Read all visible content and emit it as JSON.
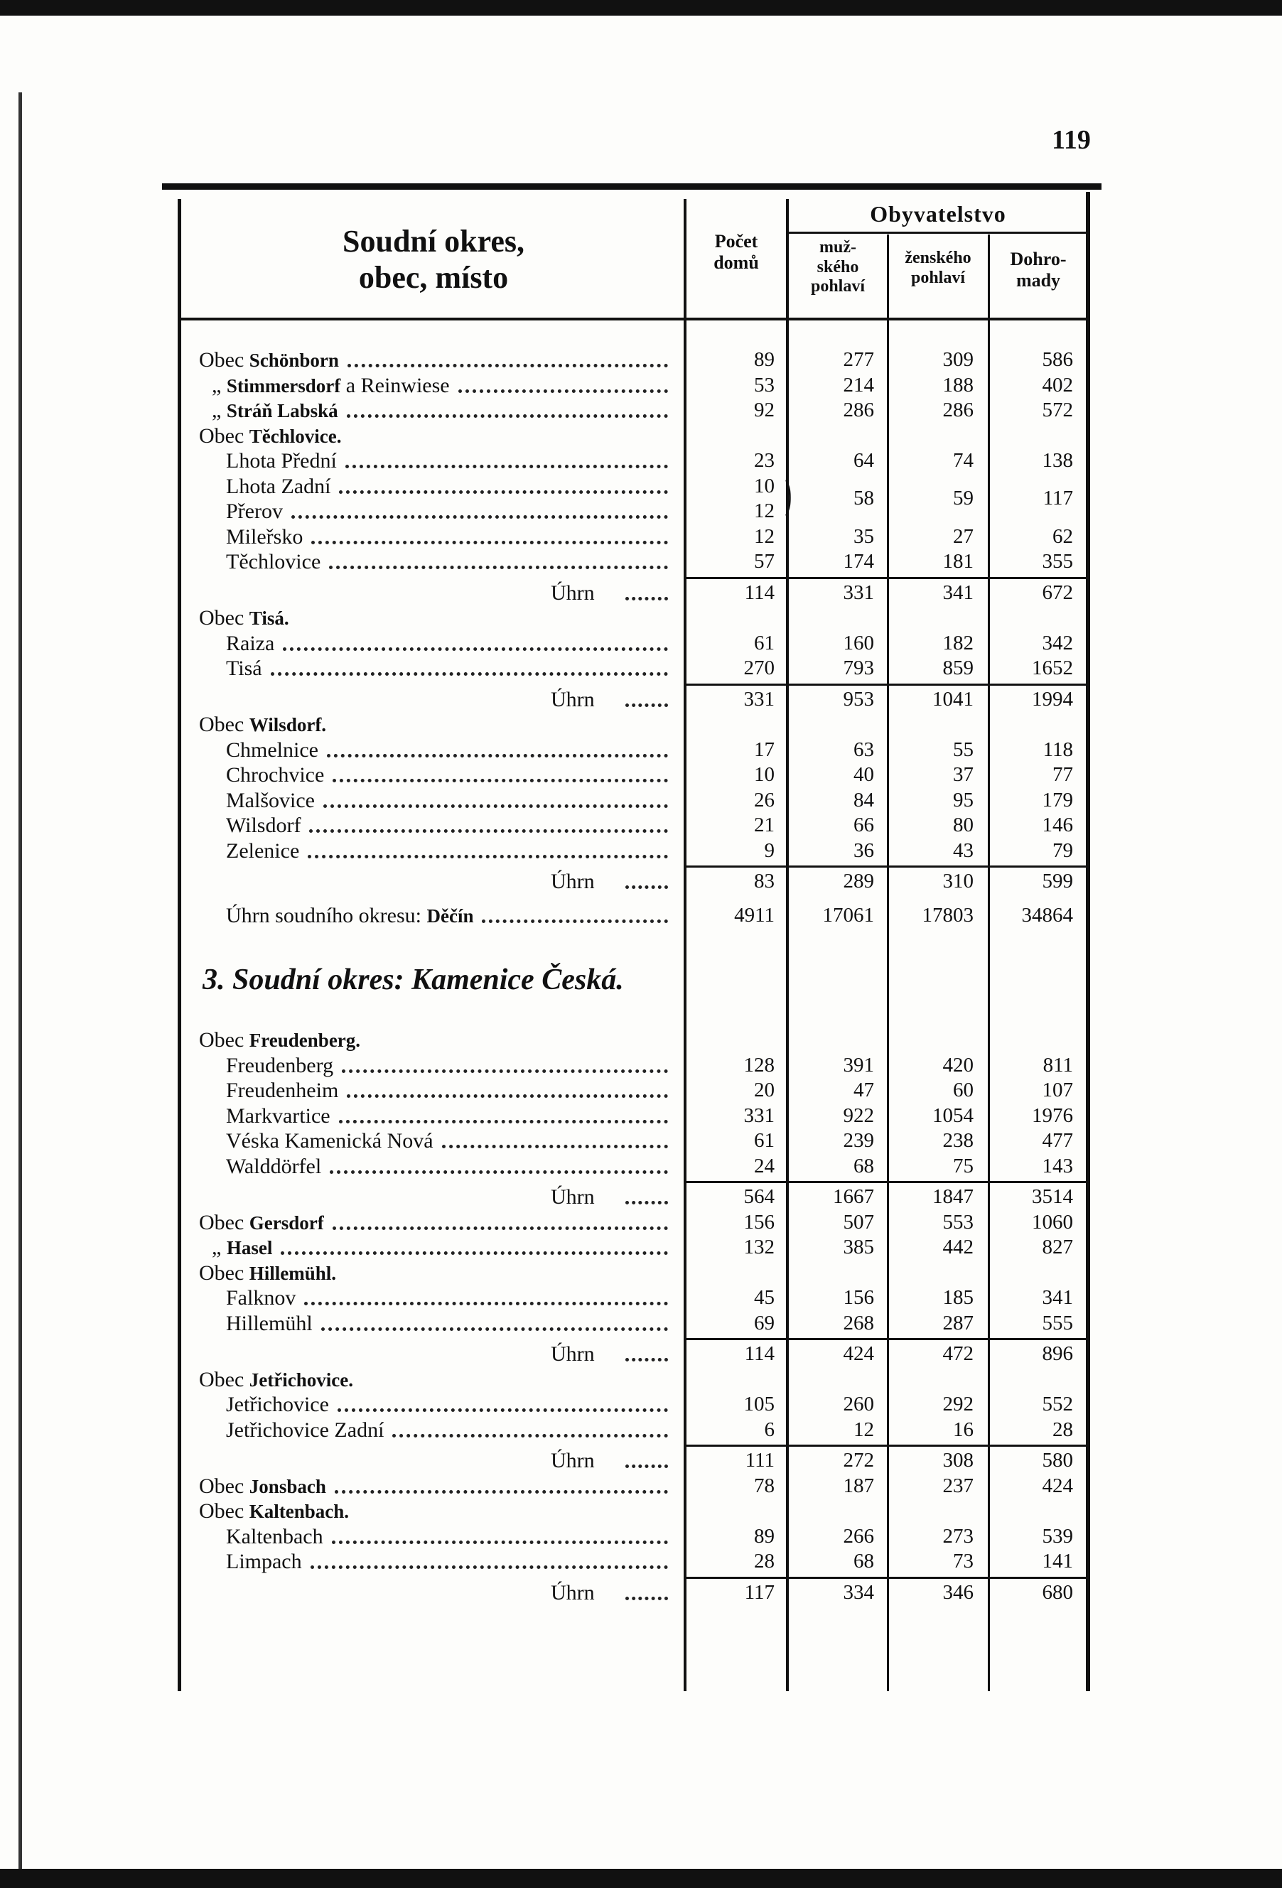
{
  "page_number": "119",
  "header": {
    "name": [
      "Soudní okres,",
      "obec, místo"
    ],
    "houses": [
      "Počet",
      "domů"
    ],
    "population": "Obyvatelstvo",
    "male": [
      "muž-",
      "ského",
      "pohlaví"
    ],
    "female": [
      "ženského",
      "pohlaví"
    ],
    "total": [
      "Dohro-",
      "mady"
    ]
  },
  "rows": [
    {
      "prefix": "Obec",
      "label": "Schönborn",
      "houses": 89,
      "male": 277,
      "female": 309,
      "total": 586
    },
    {
      "prefix": "„",
      "label": "Stimmersdorf",
      "suffix": "a Reinwiese",
      "houses": 53,
      "male": 214,
      "female": 188,
      "total": 402
    },
    {
      "prefix": "„",
      "label": "Stráň Labská",
      "houses": 92,
      "male": 286,
      "female": 286,
      "total": 572
    },
    {
      "kind": "heading",
      "prefix": "Obec",
      "label": "Těchlovice."
    },
    {
      "label": "Lhota Přední",
      "houses": 23,
      "male": 64,
      "female": 74,
      "total": 138
    },
    {
      "label": "Lhota Zadní",
      "houses": 10,
      "male": 58,
      "female": 59,
      "total": 117,
      "span": true
    },
    {
      "label": "Přerov",
      "houses": 12
    },
    {
      "label": "Mileřsko",
      "houses": 12,
      "male": 35,
      "female": 27,
      "total": 62
    },
    {
      "label": "Těchlovice",
      "houses": 57,
      "male": 174,
      "female": 181,
      "total": 355
    },
    {
      "kind": "sum",
      "label": "Úhrn",
      "houses": 114,
      "male": 331,
      "female": 341,
      "total": 672
    },
    {
      "kind": "heading",
      "prefix": "Obec",
      "label": "Tisá."
    },
    {
      "label": "Raiza",
      "houses": 61,
      "male": 160,
      "female": 182,
      "total": 342
    },
    {
      "label": "Tisá",
      "houses": 270,
      "male": 793,
      "female": 859,
      "total": 1652
    },
    {
      "kind": "sum",
      "label": "Úhrn",
      "houses": 331,
      "male": 953,
      "female": 1041,
      "total": 1994
    },
    {
      "kind": "heading",
      "prefix": "Obec",
      "label": "Wilsdorf."
    },
    {
      "label": "Chmelnice",
      "houses": 17,
      "male": 63,
      "female": 55,
      "total": 118
    },
    {
      "label": "Chrochvice",
      "houses": 10,
      "male": 40,
      "female": 37,
      "total": 77
    },
    {
      "label": "Malšovice",
      "houses": 26,
      "male": 84,
      "female": 95,
      "total": 179
    },
    {
      "label": "Wilsdorf",
      "houses": 21,
      "male": 66,
      "female": 80,
      "total": 146
    },
    {
      "label": "Zelenice",
      "houses": 9,
      "male": 36,
      "female": 43,
      "total": 79
    },
    {
      "kind": "sum",
      "label": "Úhrn",
      "houses": 83,
      "male": 289,
      "female": 310,
      "total": 599
    },
    {
      "kind": "district",
      "prefix": "Úhrn soudního okresu:",
      "label": "Děčín",
      "houses": 4911,
      "male": 17061,
      "female": 17803,
      "total": 34864
    },
    {
      "kind": "section",
      "label": "3. Soudní okres: Kamenice Česká."
    },
    {
      "kind": "heading",
      "prefix": "Obec",
      "label": "Freudenberg."
    },
    {
      "label": "Freudenberg",
      "houses": 128,
      "male": 391,
      "female": 420,
      "total": 811
    },
    {
      "label": "Freudenheim",
      "houses": 20,
      "male": 47,
      "female": 60,
      "total": 107
    },
    {
      "label": "Markvartice",
      "houses": 331,
      "male": 922,
      "female": 1054,
      "total": 1976
    },
    {
      "label": "Véska Kamenická Nová",
      "houses": 61,
      "male": 239,
      "female": 238,
      "total": 477
    },
    {
      "label": "Walddörfel",
      "houses": 24,
      "male": 68,
      "female": 75,
      "total": 143
    },
    {
      "kind": "sum",
      "label": "Úhrn",
      "houses": 564,
      "male": 1667,
      "female": 1847,
      "total": 3514
    },
    {
      "prefix": "Obec",
      "label": "Gersdorf",
      "houses": 156,
      "male": 507,
      "female": 553,
      "total": 1060
    },
    {
      "prefix": "„",
      "label": "Hasel",
      "houses": 132,
      "male": 385,
      "female": 442,
      "total": 827
    },
    {
      "kind": "heading",
      "prefix": "Obec",
      "label": "Hillemühl."
    },
    {
      "label": "Falknov",
      "houses": 45,
      "male": 156,
      "female": 185,
      "total": 341
    },
    {
      "label": "Hillemühl",
      "houses": 69,
      "male": 268,
      "female": 287,
      "total": 555
    },
    {
      "kind": "sum",
      "label": "Úhrn",
      "houses": 114,
      "male": 424,
      "female": 472,
      "total": 896
    },
    {
      "kind": "heading",
      "prefix": "Obec",
      "label": "Jetřichovice."
    },
    {
      "label": "Jetřichovice",
      "houses": 105,
      "male": 260,
      "female": 292,
      "total": 552
    },
    {
      "label": "Jetřichovice Zadní",
      "houses": 6,
      "male": 12,
      "female": 16,
      "total": 28
    },
    {
      "kind": "sum",
      "label": "Úhrn",
      "houses": 111,
      "male": 272,
      "female": 308,
      "total": 580
    },
    {
      "prefix": "Obec",
      "label": "Jonsbach",
      "houses": 78,
      "male": 187,
      "female": 237,
      "total": 424
    },
    {
      "kind": "heading",
      "prefix": "Obec",
      "label": "Kaltenbach."
    },
    {
      "label": "Kaltenbach",
      "houses": 89,
      "male": 266,
      "female": 273,
      "total": 539
    },
    {
      "label": "Limpach",
      "houses": 28,
      "male": 68,
      "female": 73,
      "total": 141
    },
    {
      "kind": "sum",
      "label": "Úhrn",
      "houses": 117,
      "male": 334,
      "female": 346,
      "total": 680
    }
  ]
}
